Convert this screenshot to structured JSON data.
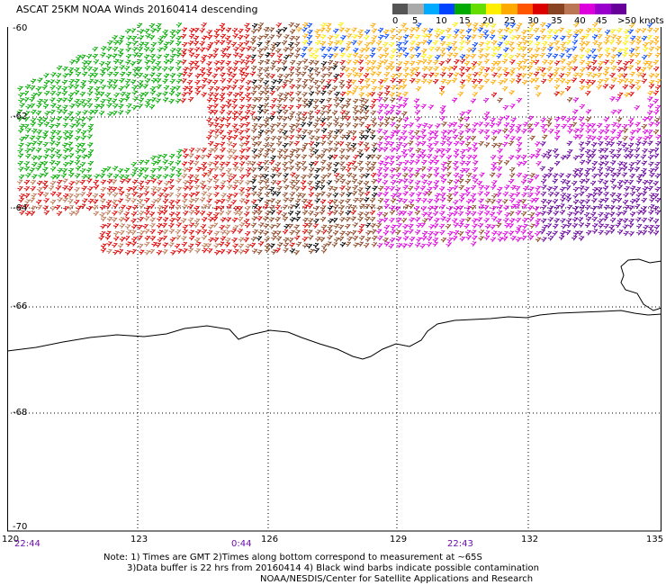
{
  "title": "ASCAT 25KM NOAA Winds 20160414 descending",
  "legend": {
    "colors": [
      "#555555",
      "#aaaaaa",
      "#00aaff",
      "#0044ff",
      "#00aa00",
      "#66dd00",
      "#ffee00",
      "#ffaa00",
      "#ff5500",
      "#dd0000",
      "#884422",
      "#bb7755",
      "#dd00dd",
      "#9900cc",
      "#660099"
    ],
    "labels": [
      "0",
      "5",
      "10",
      "15",
      "20",
      "25",
      "30",
      "35",
      "40",
      "45",
      ">50 knots"
    ]
  },
  "lat_labels": [
    "-60",
    "-62",
    "-64",
    "-66",
    "-68",
    "-70"
  ],
  "lon_labels": [
    "120",
    "123",
    "126",
    "129",
    "132",
    "135"
  ],
  "time_labels": [
    "22:44",
    "0:44",
    "22:43"
  ],
  "notes": [
    "Note: 1) Times are GMT 2)Times along bottom correspond to measurement at ~65S",
    "3)Data buffer is 22 hrs from 20160414 4) Black wind barbs indicate possible contamination",
    "NOAA/NESDIS/Center for Satellite Applications and Research"
  ],
  "wind_regions": [
    {
      "color": "#00aa00",
      "knots_range": [
        15,
        20
      ],
      "area": "northwest"
    },
    {
      "color": "#dd0000",
      "knots_range": [
        30,
        35
      ],
      "area": "west-central"
    },
    {
      "color": "#884422",
      "knots_range": [
        35,
        40
      ],
      "area": "central"
    },
    {
      "color": "#dd00dd",
      "knots_range": [
        40,
        45
      ],
      "area": "east-central"
    },
    {
      "color": "#660099",
      "knots_range": [
        45,
        50
      ],
      "area": "southeast"
    },
    {
      "color": "#ffaa00",
      "knots_range": [
        25,
        30
      ],
      "area": "north"
    },
    {
      "color": "#0044ff",
      "knots_range": [
        10,
        15
      ],
      "area": "north"
    }
  ]
}
